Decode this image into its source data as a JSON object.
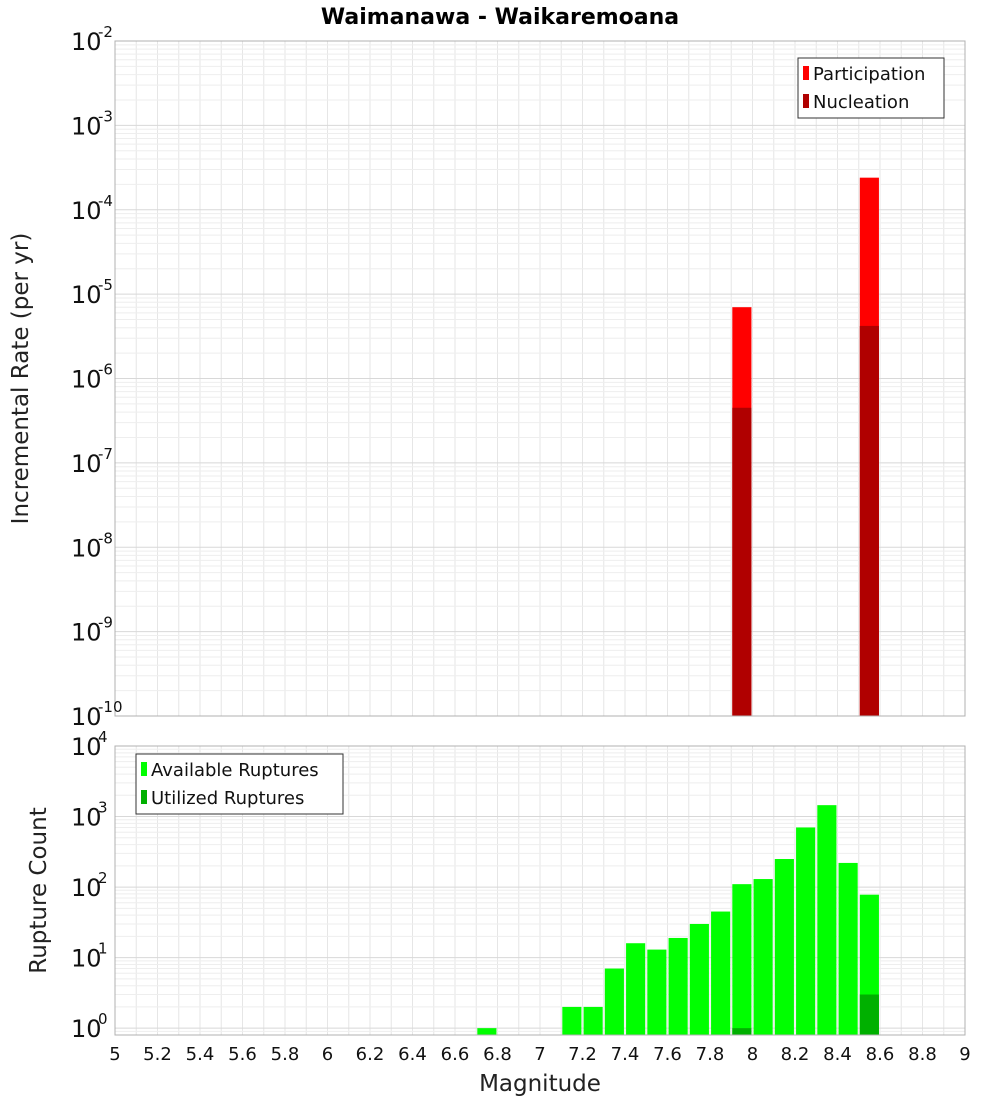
{
  "title": "Waimanawa - Waikaremoana",
  "colors": {
    "participation": "#ff0000",
    "nucleation": "#b00000",
    "available": "#00ff00",
    "utilized": "#00b000",
    "grid": "#e6e6e6",
    "frame": "#b0b0b0"
  },
  "chart_data": [
    {
      "type": "bar",
      "name": "rate-panel",
      "ylabel": "Incremental Rate (per yr)",
      "yscale": "log",
      "ylim": [
        1e-10,
        0.01
      ],
      "xlim": [
        5,
        9
      ],
      "ytick_base": "10",
      "yticks_exp": [
        "-10",
        "-9",
        "-8",
        "-7",
        "-6",
        "-5",
        "-4",
        "-3",
        "-2"
      ],
      "legend_position": "top-right",
      "bar_width": 0.09,
      "series": [
        {
          "name": "Participation",
          "color_key": "participation",
          "points": [
            {
              "x": 7.95,
              "y": 7e-06
            },
            {
              "x": 8.55,
              "y": 0.00024
            }
          ]
        },
        {
          "name": "Nucleation",
          "color_key": "nucleation",
          "points": [
            {
              "x": 7.95,
              "y": 4.5e-07
            },
            {
              "x": 8.55,
              "y": 4.2e-06
            }
          ]
        }
      ]
    },
    {
      "type": "bar",
      "name": "count-panel",
      "xlabel": "Magnitude",
      "ylabel": "Rupture Count",
      "yscale": "log",
      "ylim": [
        0.8,
        10000
      ],
      "xlim": [
        5,
        9
      ],
      "ytick_base": "10",
      "yticks_exp": [
        "0",
        "1",
        "2",
        "3",
        "4"
      ],
      "xticks": [
        "5",
        "5.2",
        "5.4",
        "5.6",
        "5.8",
        "6",
        "6.2",
        "6.4",
        "6.6",
        "6.8",
        "7",
        "7.2",
        "7.4",
        "7.6",
        "7.8",
        "8",
        "8.2",
        "8.4",
        "8.6",
        "8.8",
        "9"
      ],
      "legend_position": "top-left",
      "bar_width": 0.09,
      "series": [
        {
          "name": "Available Ruptures",
          "color_key": "available",
          "points": [
            {
              "x": 6.75,
              "y": 1
            },
            {
              "x": 7.15,
              "y": 2
            },
            {
              "x": 7.25,
              "y": 2
            },
            {
              "x": 7.35,
              "y": 7
            },
            {
              "x": 7.45,
              "y": 16
            },
            {
              "x": 7.55,
              "y": 13
            },
            {
              "x": 7.65,
              "y": 19
            },
            {
              "x": 7.75,
              "y": 30
            },
            {
              "x": 7.85,
              "y": 45
            },
            {
              "x": 7.95,
              "y": 110
            },
            {
              "x": 8.05,
              "y": 130
            },
            {
              "x": 8.15,
              "y": 250
            },
            {
              "x": 8.25,
              "y": 700
            },
            {
              "x": 8.35,
              "y": 1450
            },
            {
              "x": 8.45,
              "y": 220
            },
            {
              "x": 8.55,
              "y": 78
            }
          ]
        },
        {
          "name": "Utilized Ruptures",
          "color_key": "utilized",
          "points": [
            {
              "x": 7.95,
              "y": 1
            },
            {
              "x": 8.55,
              "y": 3
            }
          ]
        }
      ]
    }
  ]
}
